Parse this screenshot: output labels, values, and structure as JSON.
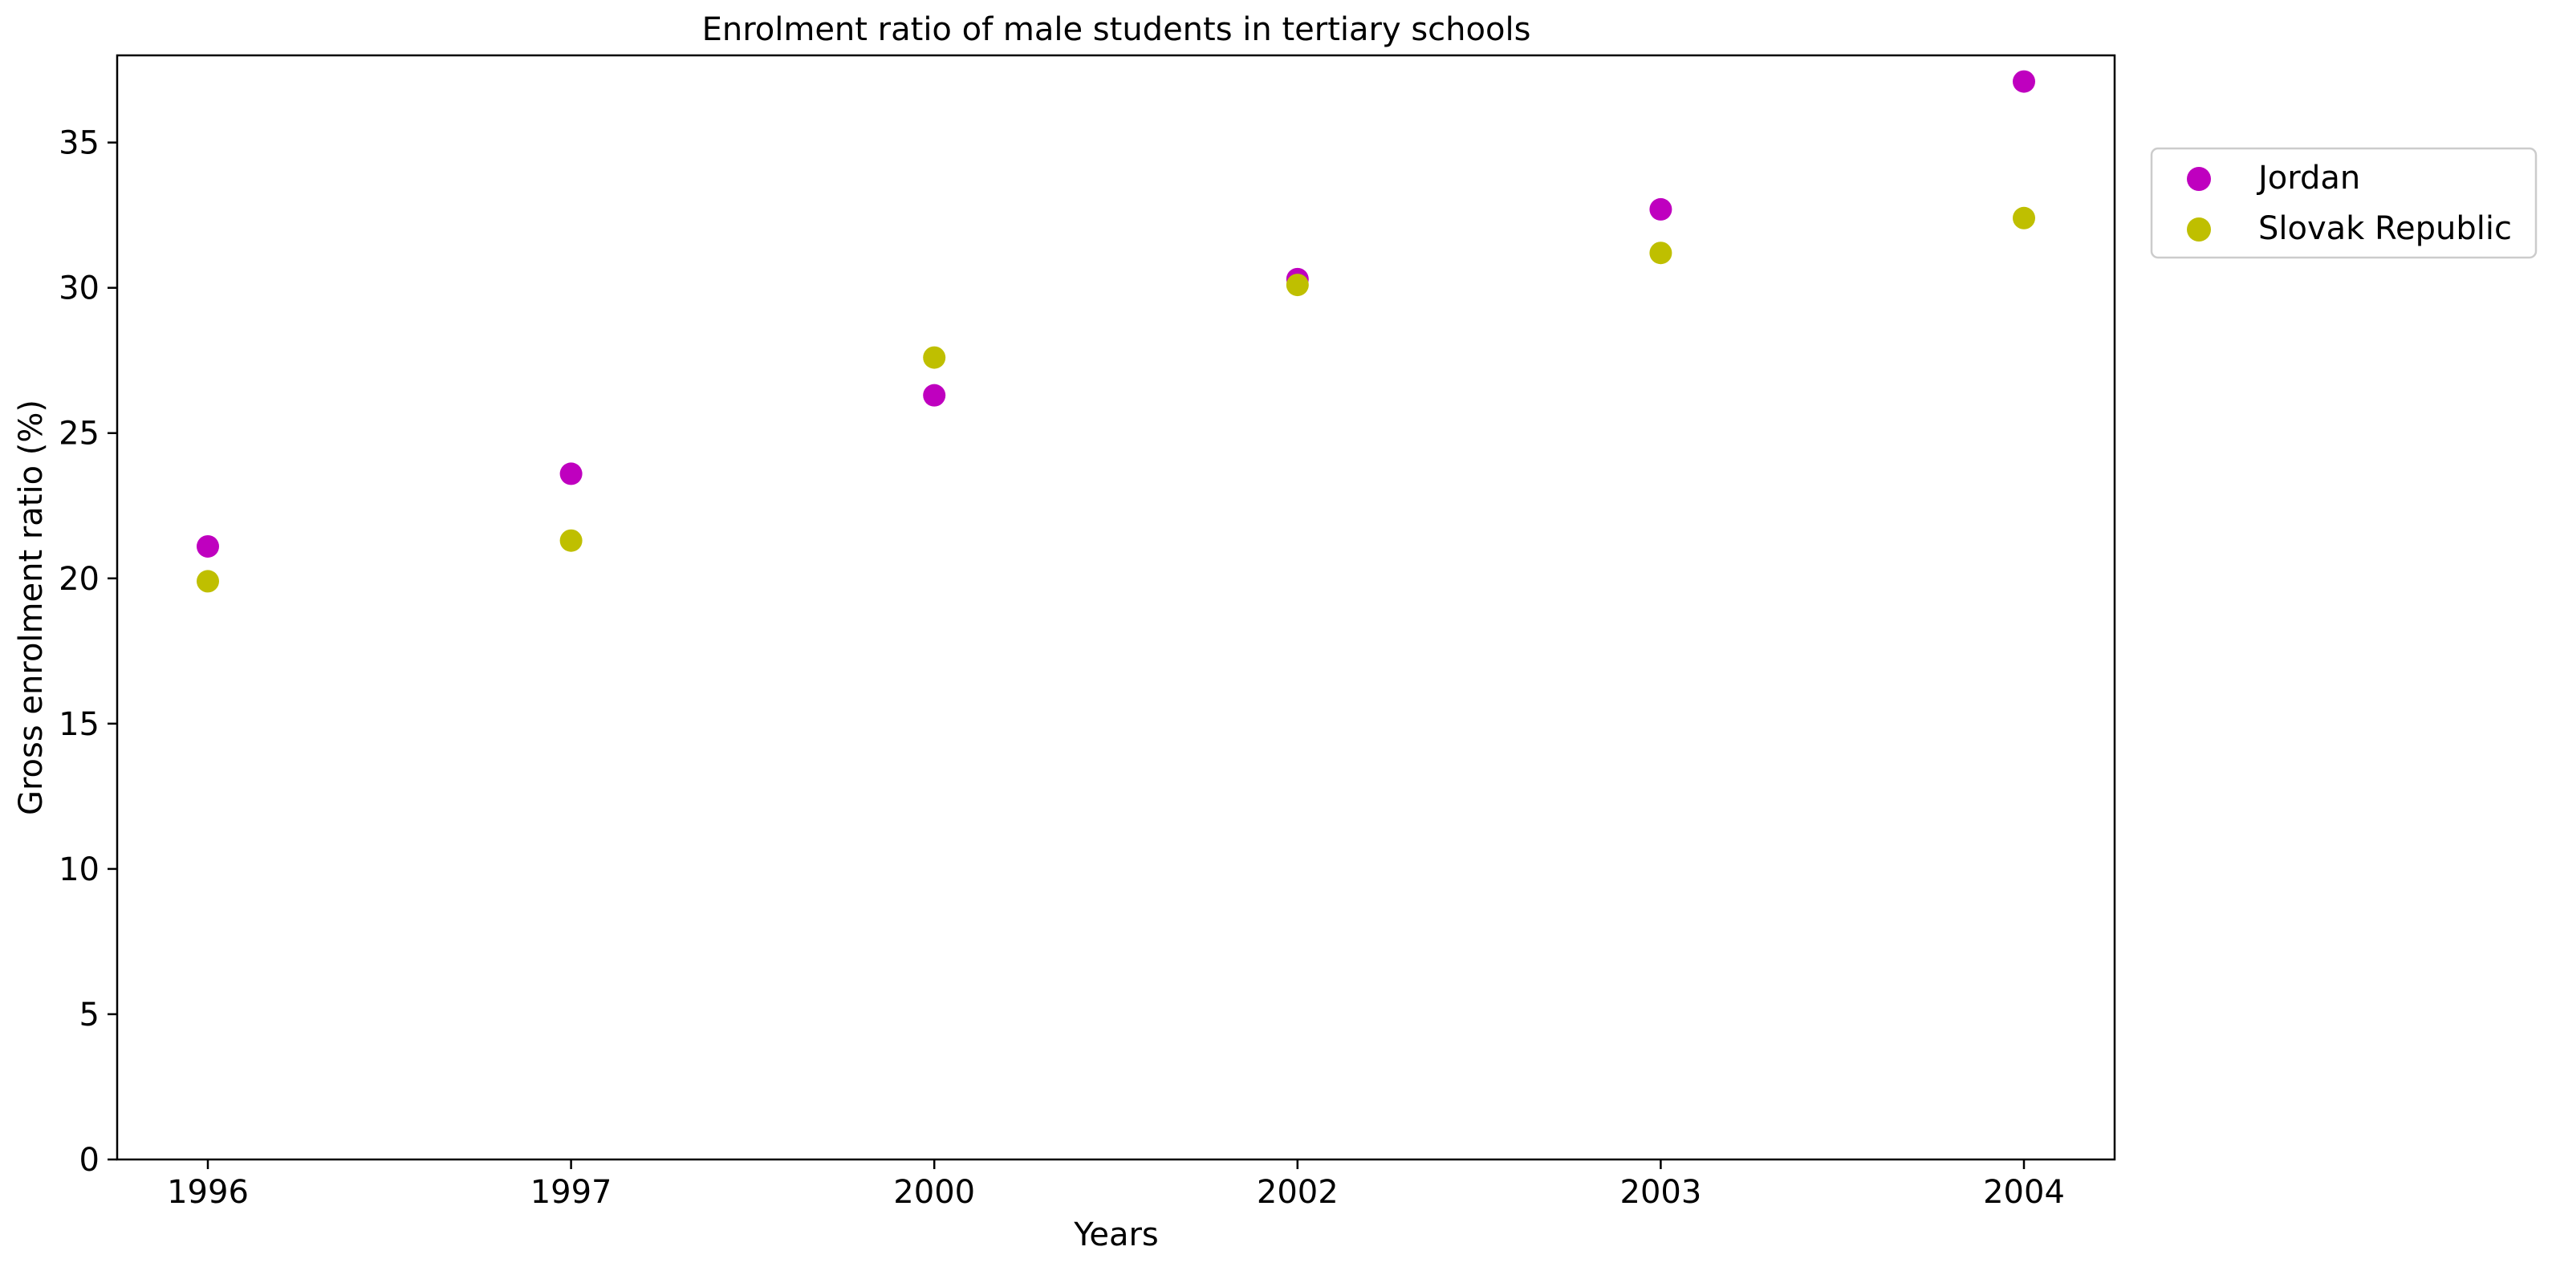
{
  "chart_data": {
    "type": "scatter",
    "title": "Enrolment ratio of male students in tertiary schools",
    "xlabel": "Years",
    "ylabel": "Gross enrolment ratio (%)",
    "categories": [
      "1996",
      "1997",
      "2000",
      "2002",
      "2003",
      "2004"
    ],
    "yticks": [
      "0",
      "5",
      "10",
      "15",
      "20",
      "25",
      "30",
      "35"
    ],
    "ylim": [
      0,
      38
    ],
    "grid": false,
    "legend_position": "outside-right-top",
    "series": [
      {
        "name": "Jordan",
        "color": "#bf00bf",
        "values": [
          21.1,
          23.6,
          26.3,
          30.3,
          32.7,
          37.1
        ]
      },
      {
        "name": "Slovak Republic",
        "color": "#bfbf00",
        "values": [
          19.9,
          21.3,
          27.6,
          30.1,
          31.2,
          32.4
        ]
      }
    ]
  }
}
